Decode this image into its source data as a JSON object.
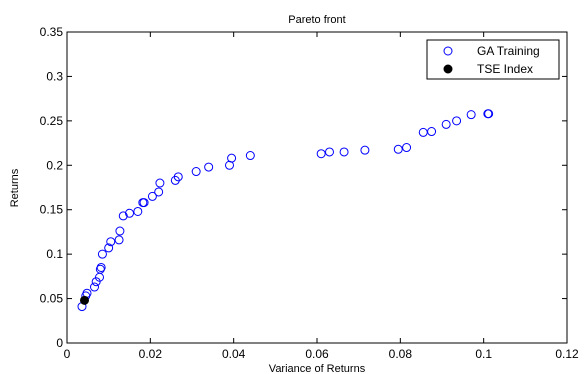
{
  "chart_data": {
    "type": "scatter",
    "title": "Pareto front",
    "xlabel": "Variance of Returns",
    "ylabel": "Returns",
    "xlim": [
      0,
      0.12
    ],
    "ylim": [
      0,
      0.35
    ],
    "xticks": [
      "0",
      "0.02",
      "0.04",
      "0.06",
      "0.08",
      "0.1",
      "0.12"
    ],
    "yticks": [
      "0",
      "0.05",
      "0.1",
      "0.15",
      "0.2",
      "0.25",
      "0.3",
      "0.35"
    ],
    "legend_position": "top-right",
    "grid": false,
    "series": [
      {
        "name": "GA Training",
        "marker": "open-circle",
        "color": "#0000ff",
        "points": [
          [
            0.0036,
            0.041
          ],
          [
            0.0045,
            0.053
          ],
          [
            0.0048,
            0.056
          ],
          [
            0.0066,
            0.063
          ],
          [
            0.007,
            0.069
          ],
          [
            0.0078,
            0.074
          ],
          [
            0.008,
            0.083
          ],
          [
            0.0082,
            0.085
          ],
          [
            0.0085,
            0.1
          ],
          [
            0.01,
            0.107
          ],
          [
            0.0105,
            0.114
          ],
          [
            0.0125,
            0.116
          ],
          [
            0.0127,
            0.126
          ],
          [
            0.0135,
            0.143
          ],
          [
            0.015,
            0.146
          ],
          [
            0.017,
            0.148
          ],
          [
            0.0182,
            0.158
          ],
          [
            0.0185,
            0.158
          ],
          [
            0.0205,
            0.165
          ],
          [
            0.022,
            0.17
          ],
          [
            0.0223,
            0.18
          ],
          [
            0.026,
            0.183
          ],
          [
            0.0267,
            0.187
          ],
          [
            0.031,
            0.193
          ],
          [
            0.034,
            0.198
          ],
          [
            0.039,
            0.2
          ],
          [
            0.0395,
            0.208
          ],
          [
            0.044,
            0.211
          ],
          [
            0.061,
            0.213
          ],
          [
            0.063,
            0.215
          ],
          [
            0.0665,
            0.215
          ],
          [
            0.0715,
            0.217
          ],
          [
            0.0795,
            0.218
          ],
          [
            0.0815,
            0.22
          ],
          [
            0.0855,
            0.237
          ],
          [
            0.0875,
            0.238
          ],
          [
            0.091,
            0.246
          ],
          [
            0.0935,
            0.25
          ],
          [
            0.097,
            0.257
          ],
          [
            0.101,
            0.258
          ],
          [
            0.1012,
            0.258
          ]
        ]
      },
      {
        "name": "TSE Index",
        "marker": "filled-circle",
        "color": "#000000",
        "points": [
          [
            0.0042,
            0.048
          ]
        ]
      }
    ]
  }
}
